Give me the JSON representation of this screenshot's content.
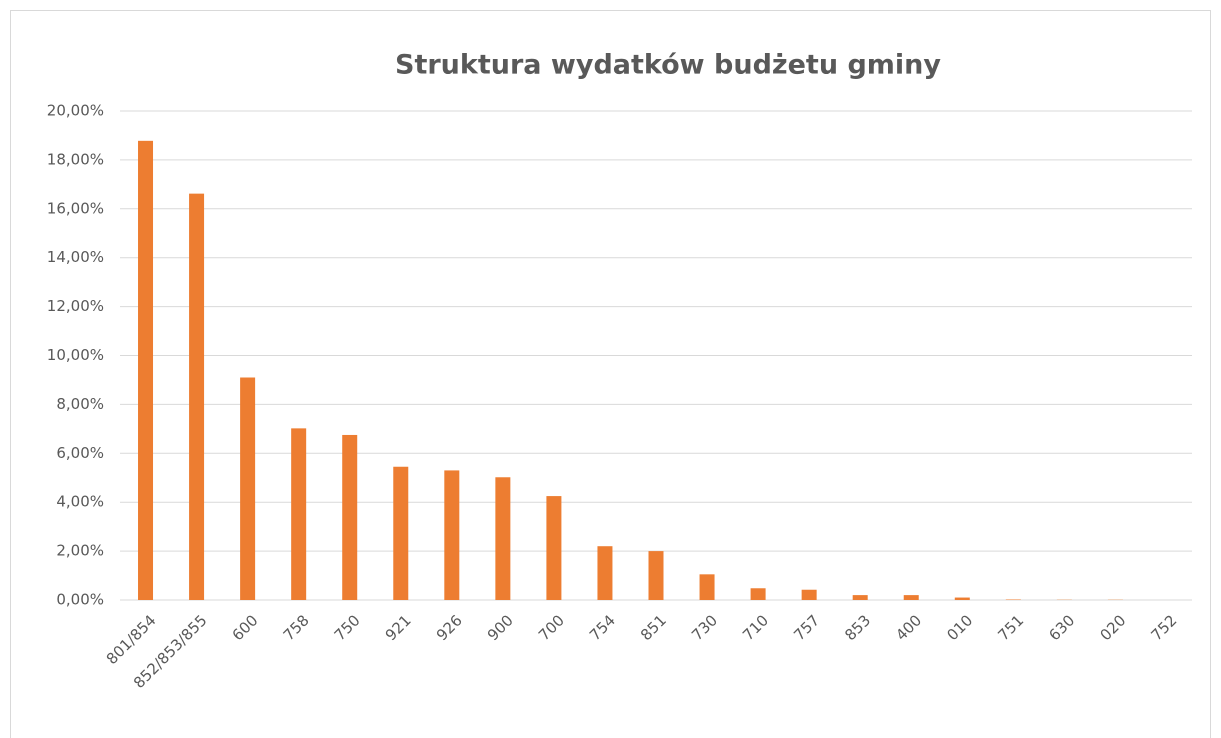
{
  "chart_data": {
    "type": "bar",
    "title": "Struktura wydatków budżetu gminy",
    "categories": [
      "801/854",
      "852/853/855",
      "600",
      "758",
      "750",
      "921",
      "926",
      "900",
      "700",
      "754",
      "851",
      "730",
      "710",
      "757",
      "853",
      "400",
      "010",
      "751",
      "630",
      "020",
      "752"
    ],
    "values": [
      18.78,
      16.62,
      9.1,
      7.02,
      6.75,
      5.45,
      5.3,
      5.02,
      4.25,
      2.2,
      2.0,
      1.05,
      0.48,
      0.42,
      0.2,
      0.2,
      0.1,
      0.02,
      0.01,
      0.01,
      0.0
    ],
    "color": "#ed7d31",
    "ylim": [
      0,
      20
    ],
    "yticks": [
      {
        "value": 0,
        "label": "0,00%"
      },
      {
        "value": 2,
        "label": "2,00%"
      },
      {
        "value": 4,
        "label": "4,00%"
      },
      {
        "value": 6,
        "label": "6,00%"
      },
      {
        "value": 8,
        "label": "8,00%"
      },
      {
        "value": 10,
        "label": "10,00%"
      },
      {
        "value": 12,
        "label": "12,00%"
      },
      {
        "value": 14,
        "label": "14,00%"
      },
      {
        "value": 16,
        "label": "16,00%"
      },
      {
        "value": 18,
        "label": "18,00%"
      },
      {
        "value": 20,
        "label": "20,00%"
      }
    ],
    "grid": true
  }
}
